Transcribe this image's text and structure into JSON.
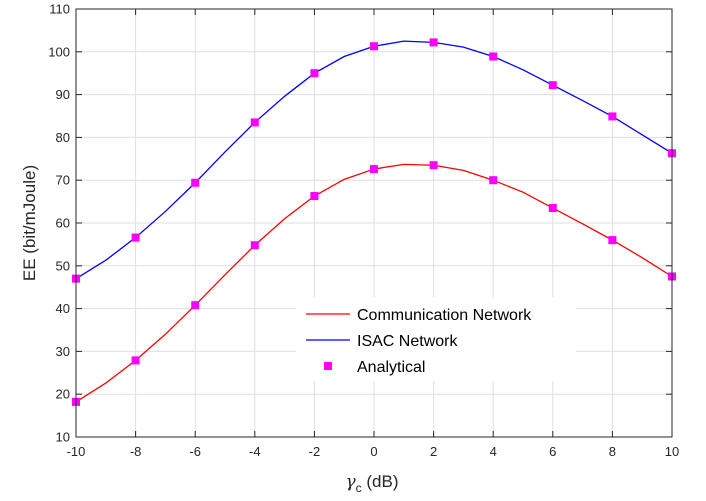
{
  "chart_data": {
    "type": "line",
    "xlabel_symbol": "γ",
    "xlabel_subscript": "c",
    "xlabel_unit": " (dB)",
    "ylabel": "EE (bit/mJoule)",
    "xlim": [
      -10,
      10
    ],
    "ylim": [
      10,
      110
    ],
    "xticks": [
      -10,
      -8,
      -6,
      -4,
      -2,
      0,
      2,
      4,
      6,
      8,
      10
    ],
    "yticks": [
      10,
      20,
      30,
      40,
      50,
      60,
      70,
      80,
      90,
      100,
      110
    ],
    "grid": true,
    "legend_position": "lower-center",
    "series": [
      {
        "name": "Communication Network",
        "color": "#ff0000",
        "x": [
          -10,
          -9,
          -8,
          -7,
          -6,
          -5,
          -4,
          -3,
          -2,
          -1,
          0,
          1,
          2,
          3,
          4,
          5,
          6,
          7,
          8,
          9,
          10
        ],
        "y": [
          18.2,
          22.6,
          27.9,
          34.0,
          40.8,
          47.9,
          54.8,
          61.0,
          66.3,
          70.2,
          72.6,
          73.7,
          73.5,
          72.3,
          70.0,
          67.2,
          63.5,
          59.8,
          56.0,
          51.9,
          47.5
        ]
      },
      {
        "name": "ISAC Network",
        "color": "#0000ff",
        "x": [
          -10,
          -9,
          -8,
          -7,
          -6,
          -5,
          -4,
          -3,
          -2,
          -1,
          0,
          1,
          2,
          3,
          4,
          5,
          6,
          7,
          8,
          9,
          10
        ],
        "y": [
          47.0,
          51.3,
          56.6,
          62.7,
          69.4,
          76.6,
          83.5,
          89.6,
          95.0,
          98.9,
          101.3,
          102.5,
          102.2,
          101.1,
          98.9,
          95.8,
          92.2,
          88.6,
          84.9,
          80.6,
          76.3
        ]
      },
      {
        "name": "Analytical",
        "color": "#ff00ff",
        "marker": "square",
        "x": [
          -10,
          -8,
          -6,
          -4,
          -2,
          0,
          2,
          4,
          6,
          8,
          10
        ],
        "y": [
          18.2,
          27.9,
          40.8,
          54.8,
          66.3,
          72.6,
          73.5,
          70.0,
          63.5,
          56.0,
          47.5
        ],
        "x2": [
          -10,
          -8,
          -6,
          -4,
          -2,
          0,
          2,
          4,
          6,
          8,
          10
        ],
        "y2": [
          47.0,
          56.6,
          69.4,
          83.5,
          95.0,
          101.3,
          102.2,
          98.9,
          92.2,
          84.9,
          76.3
        ]
      }
    ]
  }
}
